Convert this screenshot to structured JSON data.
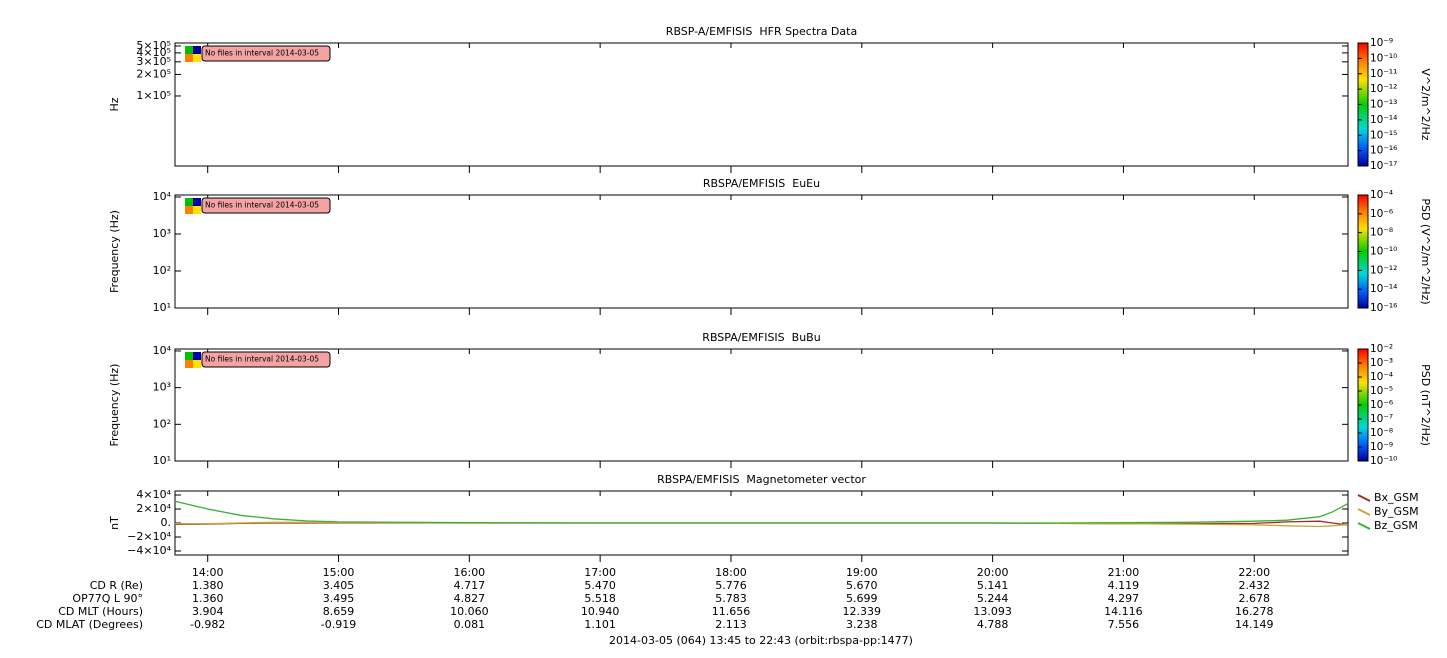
{
  "time_axis": {
    "xlim": [
      13.75,
      22.7167
    ],
    "xticks": [
      {
        "value": 14,
        "label": "14:00"
      },
      {
        "value": 15,
        "label": "15:00"
      },
      {
        "value": 16,
        "label": "16:00"
      },
      {
        "value": 17,
        "label": "17:00"
      },
      {
        "value": 18,
        "label": "18:00"
      },
      {
        "value": 19,
        "label": "19:00"
      },
      {
        "value": 20,
        "label": "20:00"
      },
      {
        "value": 21,
        "label": "21:00"
      },
      {
        "value": 22,
        "label": "22:00"
      }
    ]
  },
  "chart_data": [
    {
      "type": "spectrogram",
      "title": "RBSP-A/EMFISIS  HFR Spectra Data",
      "y_label": "Hz",
      "y_log": true,
      "ylim": [
        10500,
        550000
      ],
      "yticks": [
        {
          "value": 500000,
          "label": "5×10⁵"
        },
        {
          "value": 400000,
          "label": "4×10⁵"
        },
        {
          "value": 300000,
          "label": "3×10⁵"
        },
        {
          "value": 200000,
          "label": "2×10⁵"
        },
        {
          "value": 100000,
          "label": "1×10⁵"
        }
      ],
      "annotation": "No files in interval 2014-03-05",
      "colorbar": {
        "label": "V^2/m^2/Hz",
        "log": true,
        "zlim": [
          1e-17,
          1e-09
        ],
        "zticks": [
          {
            "value": 1e-09,
            "label": "10⁻⁹"
          },
          {
            "value": 1e-10,
            "label": "10⁻¹⁰"
          },
          {
            "value": 1e-11,
            "label": "10⁻¹¹"
          },
          {
            "value": 1e-12,
            "label": "10⁻¹²"
          },
          {
            "value": 1e-13,
            "label": "10⁻¹³"
          },
          {
            "value": 1e-14,
            "label": "10⁻¹⁴"
          },
          {
            "value": 1e-15,
            "label": "10⁻¹⁵"
          },
          {
            "value": 1e-16,
            "label": "10⁻¹⁶"
          },
          {
            "value": 1e-17,
            "label": "10⁻¹⁷"
          }
        ]
      }
    },
    {
      "type": "spectrogram",
      "title": "RBSPA/EMFISIS  EuEu",
      "y_label": "Frequency (Hz)",
      "y_log": true,
      "ylim": [
        10,
        11300
      ],
      "yticks": [
        {
          "value": 10000,
          "label": "10⁴"
        },
        {
          "value": 1000,
          "label": "10³"
        },
        {
          "value": 100,
          "label": "10²"
        },
        {
          "value": 10,
          "label": "10¹"
        }
      ],
      "annotation": "No files in interval 2014-03-05",
      "colorbar": {
        "label": "PSD (V^2/m^2/Hz)",
        "log": true,
        "zlim": [
          1e-16,
          0.0001
        ],
        "zticks": [
          {
            "value": 0.0001,
            "label": "10⁻⁴"
          },
          {
            "value": 1e-06,
            "label": "10⁻⁶"
          },
          {
            "value": 1e-08,
            "label": "10⁻⁸"
          },
          {
            "value": 1e-10,
            "label": "10⁻¹⁰"
          },
          {
            "value": 1e-12,
            "label": "10⁻¹²"
          },
          {
            "value": 1e-14,
            "label": "10⁻¹⁴"
          },
          {
            "value": 1e-16,
            "label": "10⁻¹⁶"
          }
        ]
      }
    },
    {
      "type": "spectrogram",
      "title": "RBSPA/EMFISIS  BuBu",
      "y_label": "Frequency (Hz)",
      "y_log": true,
      "ylim": [
        10,
        11300
      ],
      "yticks": [
        {
          "value": 10000,
          "label": "10⁴"
        },
        {
          "value": 1000,
          "label": "10³"
        },
        {
          "value": 100,
          "label": "10²"
        },
        {
          "value": 10,
          "label": "10¹"
        }
      ],
      "annotation": "No files in interval 2014-03-05",
      "colorbar": {
        "label": "PSD (nT^2/Hz)",
        "log": true,
        "zlim": [
          1e-10,
          0.01
        ],
        "zticks": [
          {
            "value": 0.01,
            "label": "10⁻²"
          },
          {
            "value": 0.001,
            "label": "10⁻³"
          },
          {
            "value": 0.0001,
            "label": "10⁻⁴"
          },
          {
            "value": 1e-05,
            "label": "10⁻⁵"
          },
          {
            "value": 1e-06,
            "label": "10⁻⁶"
          },
          {
            "value": 1e-07,
            "label": "10⁻⁷"
          },
          {
            "value": 1e-08,
            "label": "10⁻⁸"
          },
          {
            "value": 1e-09,
            "label": "10⁻⁹"
          },
          {
            "value": 1e-10,
            "label": "10⁻¹⁰"
          }
        ]
      }
    },
    {
      "type": "line",
      "title": "RBSPA/EMFISIS  Magnetometer vector",
      "y_label": "nT",
      "y_log": false,
      "ylim": [
        -45700,
        45700
      ],
      "yticks": [
        {
          "value": 40000,
          "label": "4×10⁴"
        },
        {
          "value": 20000,
          "label": "2×10⁴"
        },
        {
          "value": 0,
          "label": "0."
        },
        {
          "value": -20000,
          "label": "−2×10⁴"
        },
        {
          "value": -40000,
          "label": "−4×10⁴"
        }
      ],
      "x": [
        13.75,
        14.0,
        14.25,
        14.5,
        14.75,
        15.0,
        16,
        17,
        18,
        19,
        20,
        20.5,
        21,
        21.5,
        22,
        22.25,
        22.5,
        22.6,
        22.7167
      ],
      "series": [
        {
          "name": "Bx_GSM",
          "color": "#a52a2a",
          "values": [
            -2000,
            -1500,
            -500,
            0,
            0,
            0,
            0,
            0,
            0,
            0,
            0,
            -500,
            -1000,
            -1000,
            -500,
            1500,
            2500,
            0,
            -3000
          ]
        },
        {
          "name": "By_GSM",
          "color": "#c8a83c",
          "values": [
            -1000,
            -1000,
            0,
            1000,
            1000,
            500,
            0,
            0,
            0,
            0,
            0,
            -500,
            -1000,
            -1500,
            -2500,
            -4000,
            -5000,
            -4000,
            -2000
          ]
        },
        {
          "name": "Bz_GSM",
          "color": "#33b333",
          "values": [
            31000,
            20000,
            11000,
            6000,
            3000,
            1500,
            500,
            0,
            0,
            0,
            0,
            0,
            500,
            1000,
            2500,
            4000,
            9000,
            16000,
            28000
          ]
        }
      ]
    }
  ],
  "ephemeris": [
    {
      "label": "CD R (Re)",
      "values": [
        "1.380",
        "3.405",
        "4.717",
        "5.470",
        "5.776",
        "5.670",
        "5.141",
        "4.119",
        "2.432"
      ]
    },
    {
      "label": "OP77Q L 90°",
      "values": [
        "1.360",
        "3.495",
        "4.827",
        "5.518",
        "5.783",
        "5.699",
        "5.244",
        "4.297",
        "2.678"
      ]
    },
    {
      "label": "CD MLT (Hours)",
      "values": [
        "3.904",
        "8.659",
        "10.060",
        "10.940",
        "11.656",
        "12.339",
        "13.093",
        "14.116",
        "16.278"
      ]
    },
    {
      "label": "CD MLAT (Degrees)",
      "values": [
        "-0.982",
        "-0.919",
        "0.081",
        "1.101",
        "2.113",
        "3.238",
        "4.788",
        "7.556",
        "14.149"
      ]
    }
  ],
  "footer": "2014-03-05 (064) 13:45 to 22:43 (orbit:rbspa-pp:1477)"
}
